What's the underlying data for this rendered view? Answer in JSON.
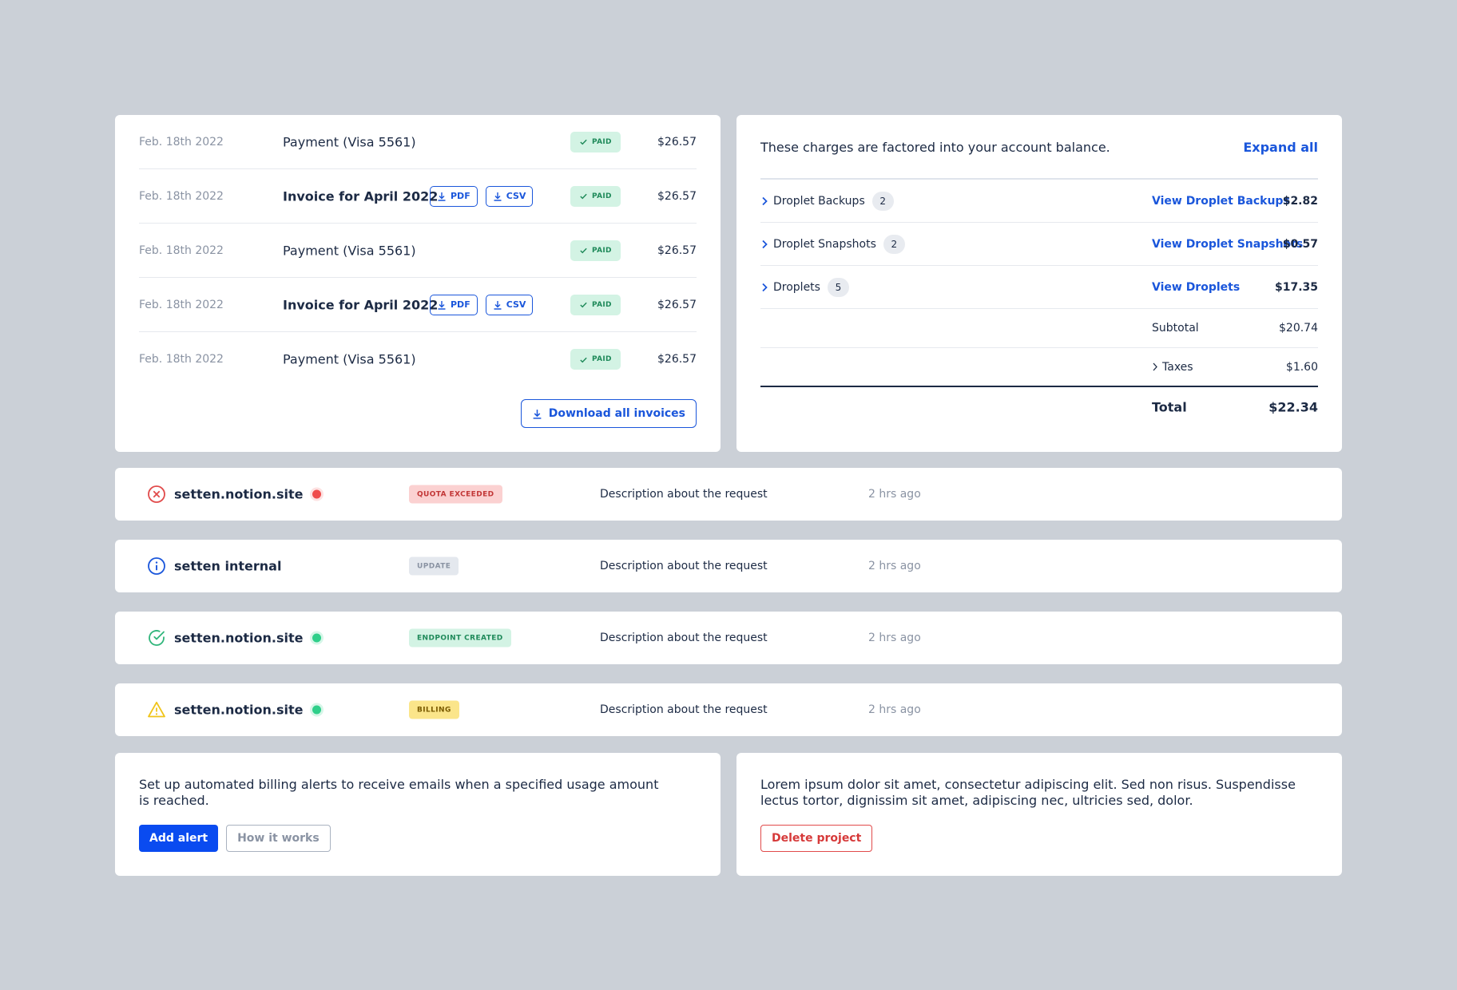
{
  "invoices": {
    "rows": [
      {
        "date": "Feb. 18th 2022",
        "description": "Payment (Visa 5561)",
        "status": "PAID",
        "amount": "$26.57"
      },
      {
        "date": "Feb. 18th 2022",
        "description": "Invoice for April 2022",
        "pdf_label": "PDF",
        "csv_label": "CSV",
        "status": "PAID",
        "amount": "$26.57"
      },
      {
        "date": "Feb. 18th 2022",
        "description": "Payment (Visa 5561)",
        "status": "PAID",
        "amount": "$26.57"
      },
      {
        "date": "Feb. 18th 2022",
        "description": "Invoice for April 2022",
        "pdf_label": "PDF",
        "csv_label": "CSV",
        "status": "PAID",
        "amount": "$26.57"
      },
      {
        "date": "Feb. 18th 2022",
        "description": "Payment (Visa 5561)",
        "status": "PAID",
        "amount": "$26.57"
      }
    ],
    "download_all_label": "Download all invoices"
  },
  "charges": {
    "note": "These charges are factored into your account balance.",
    "expand_label": "Expand all",
    "items": [
      {
        "label": "Droplet Backups",
        "count": "2",
        "link": "View Droplet Backups",
        "amount": "$2.82"
      },
      {
        "label": "Droplet Snapshots",
        "count": "2",
        "link": "View Droplet Snapshots",
        "amount": "$0.57"
      },
      {
        "label": "Droplets",
        "count": "5",
        "link": "View Droplets",
        "amount": "$17.35"
      }
    ],
    "subtotal_label": "Subtotal",
    "subtotal": "$20.74",
    "taxes_label": "Taxes",
    "taxes": "$1.60",
    "total_label": "Total",
    "total": "$22.34"
  },
  "alerts": [
    {
      "site": "setten.notion.site",
      "icon": "error-circle-icon",
      "status_dot": "red",
      "tag": "QUOTA EXCEEDED",
      "description": "Description about the request",
      "time": "2 hrs ago"
    },
    {
      "site": "setten internal",
      "icon": "info-circle-icon",
      "tag": "UPDATE",
      "description": "Description about the request",
      "time": "2 hrs ago"
    },
    {
      "site": "setten.notion.site",
      "icon": "check-circle-icon",
      "status_dot": "green",
      "tag": "ENDPOINT CREATED",
      "description": "Description about the request",
      "time": "2 hrs ago"
    },
    {
      "site": "setten.notion.site",
      "icon": "warning-triangle-icon",
      "status_dot": "green",
      "tag": "BILLING",
      "description": "Description about the request",
      "time": "2 hrs ago"
    }
  ],
  "billing_alerts": {
    "text": "Set up automated billing alerts to receive emails when a specified usage amount is reached.",
    "add_label": "Add alert",
    "how_label": "How it works"
  },
  "project": {
    "text": "Lorem ipsum dolor sit amet, consectetur adipiscing elit. Sed non risus. Suspendisse lectus tortor, dignissim sit amet, adipiscing nec, ultricies sed, dolor.",
    "delete_label": "Delete project"
  },
  "colors": {
    "background": "#cbd0d7",
    "accent": "#1a56db",
    "primary_button": "#0a4bf0",
    "danger": "#e14b4b",
    "success": "#2fcf8a",
    "warning": "#f5c518"
  }
}
